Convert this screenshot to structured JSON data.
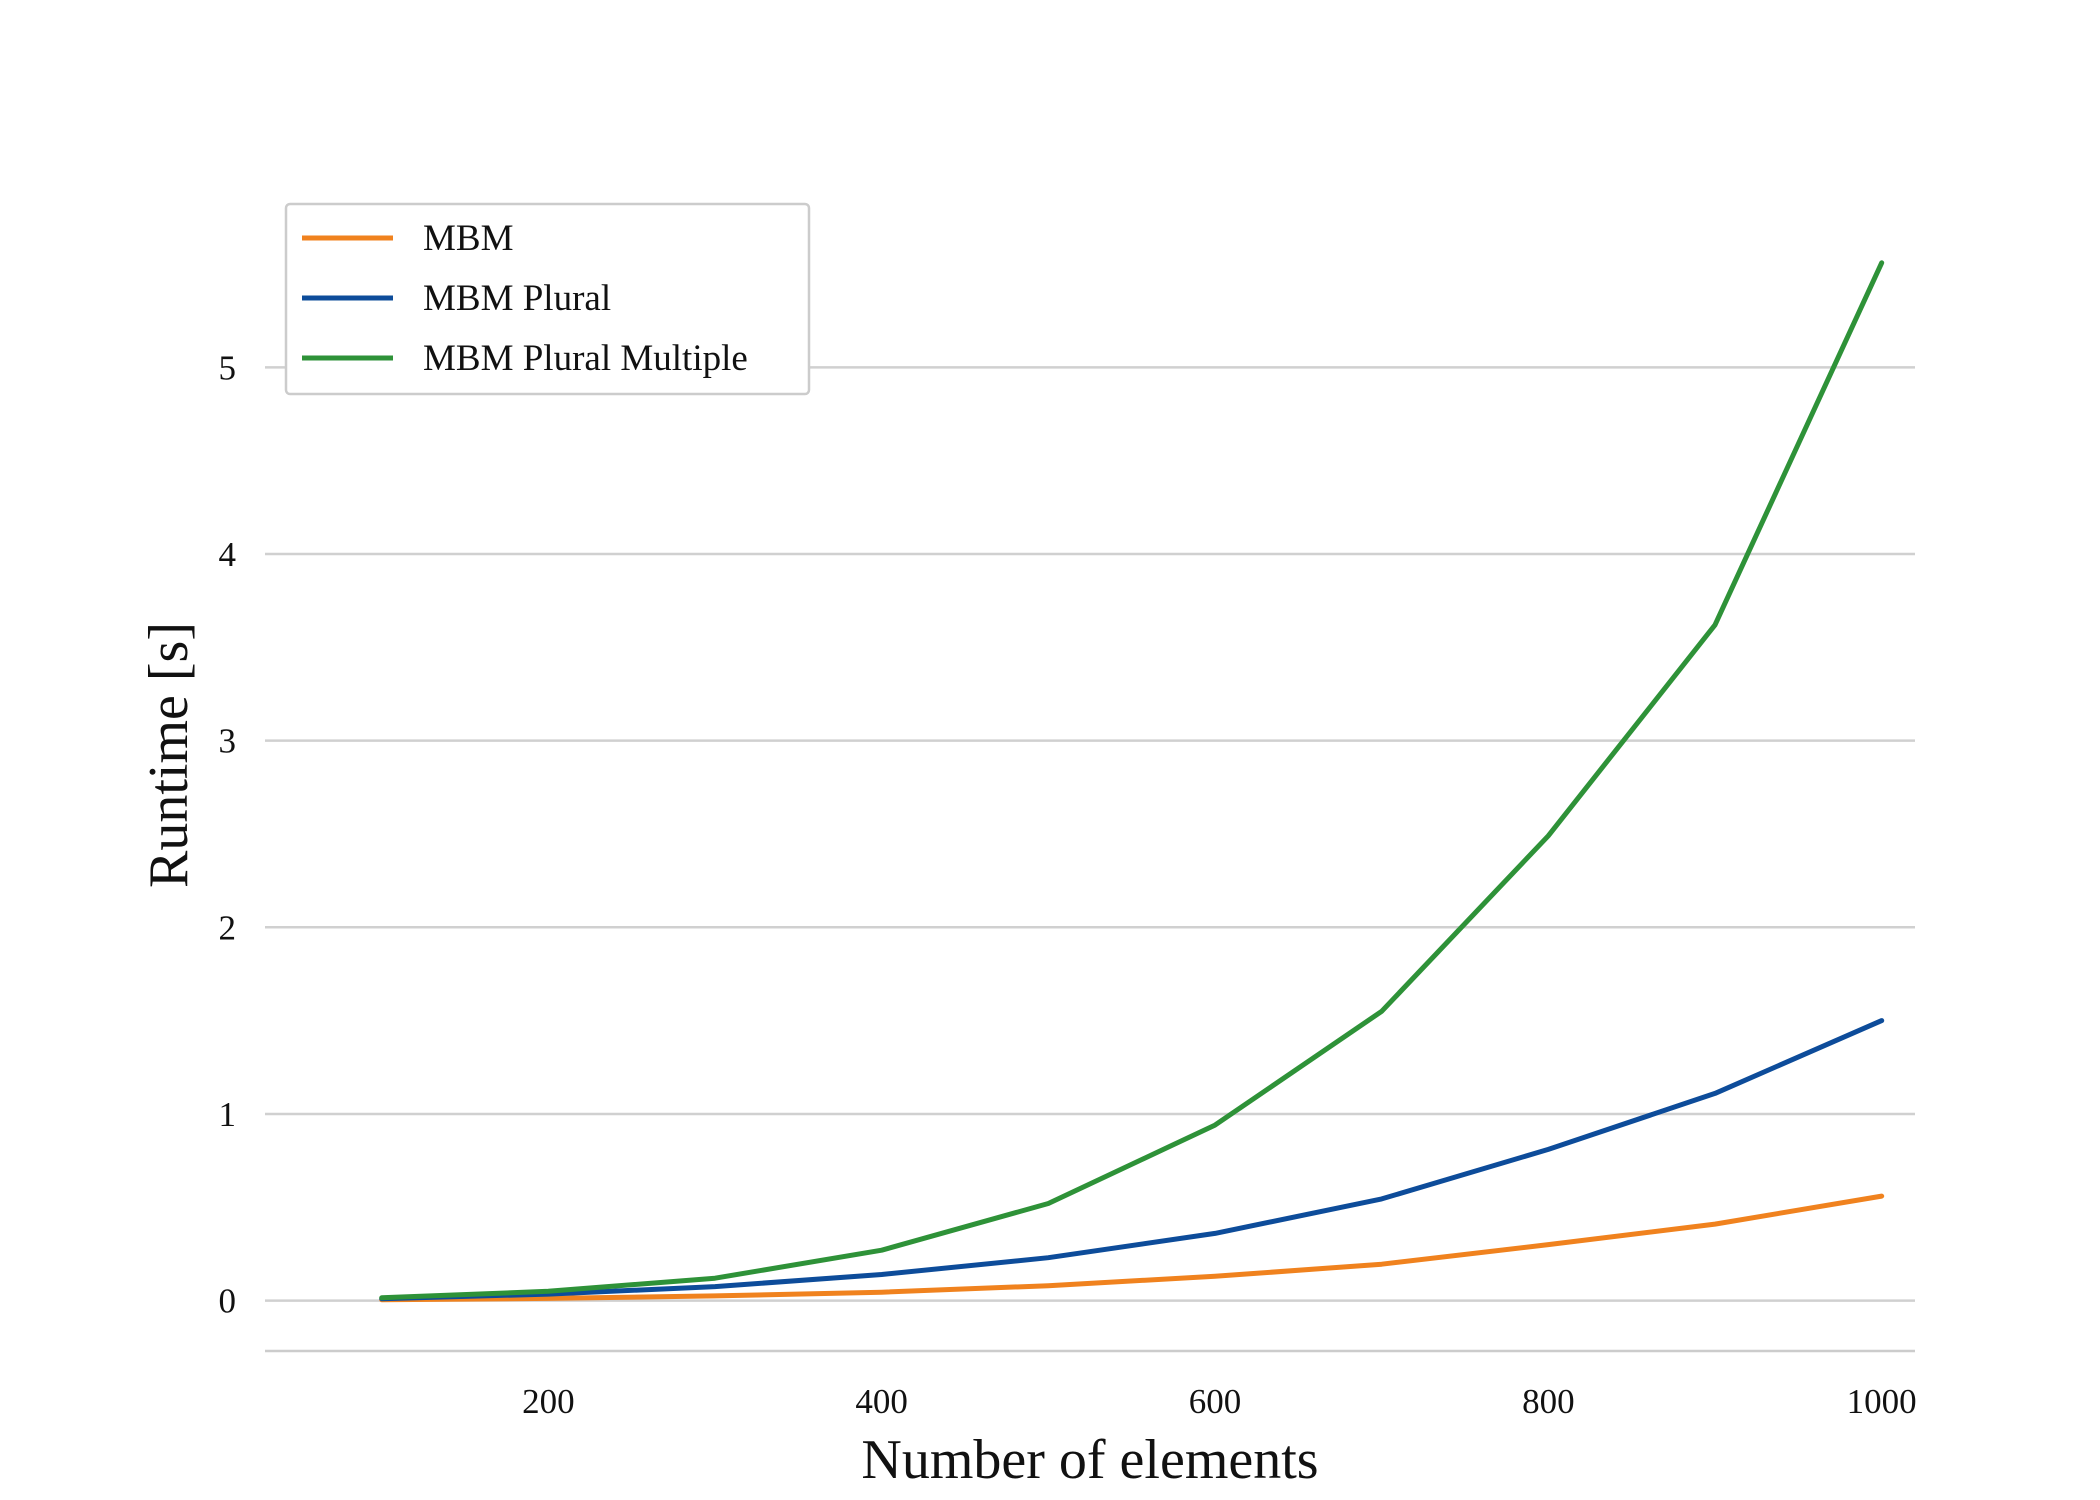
{
  "chart_data": {
    "type": "line",
    "xlabel": "Number of elements",
    "ylabel": "Runtime [s]",
    "x": [
      100,
      200,
      300,
      400,
      500,
      600,
      700,
      800,
      900,
      1000
    ],
    "x_ticks": [
      200,
      400,
      600,
      800,
      1000
    ],
    "y_ticks": [
      0,
      1,
      2,
      3,
      4,
      5
    ],
    "xlim": [
      30,
      1020
    ],
    "ylim": [
      -0.27,
      5.8
    ],
    "grid": "horizontal",
    "legend_position": "top-left",
    "series": [
      {
        "name": "MBM",
        "color": "#F0821E",
        "values": [
          0.005,
          0.012,
          0.025,
          0.045,
          0.08,
          0.13,
          0.195,
          0.3,
          0.41,
          0.56
        ]
      },
      {
        "name": "MBM Plural",
        "color": "#0D4C9A",
        "values": [
          0.01,
          0.035,
          0.075,
          0.14,
          0.23,
          0.36,
          0.545,
          0.81,
          1.11,
          1.5
        ]
      },
      {
        "name": "MBM Plural Multiple",
        "color": "#2E9238",
        "values": [
          0.015,
          0.05,
          0.12,
          0.27,
          0.52,
          0.94,
          1.55,
          2.49,
          3.62,
          5.56
        ]
      }
    ]
  }
}
